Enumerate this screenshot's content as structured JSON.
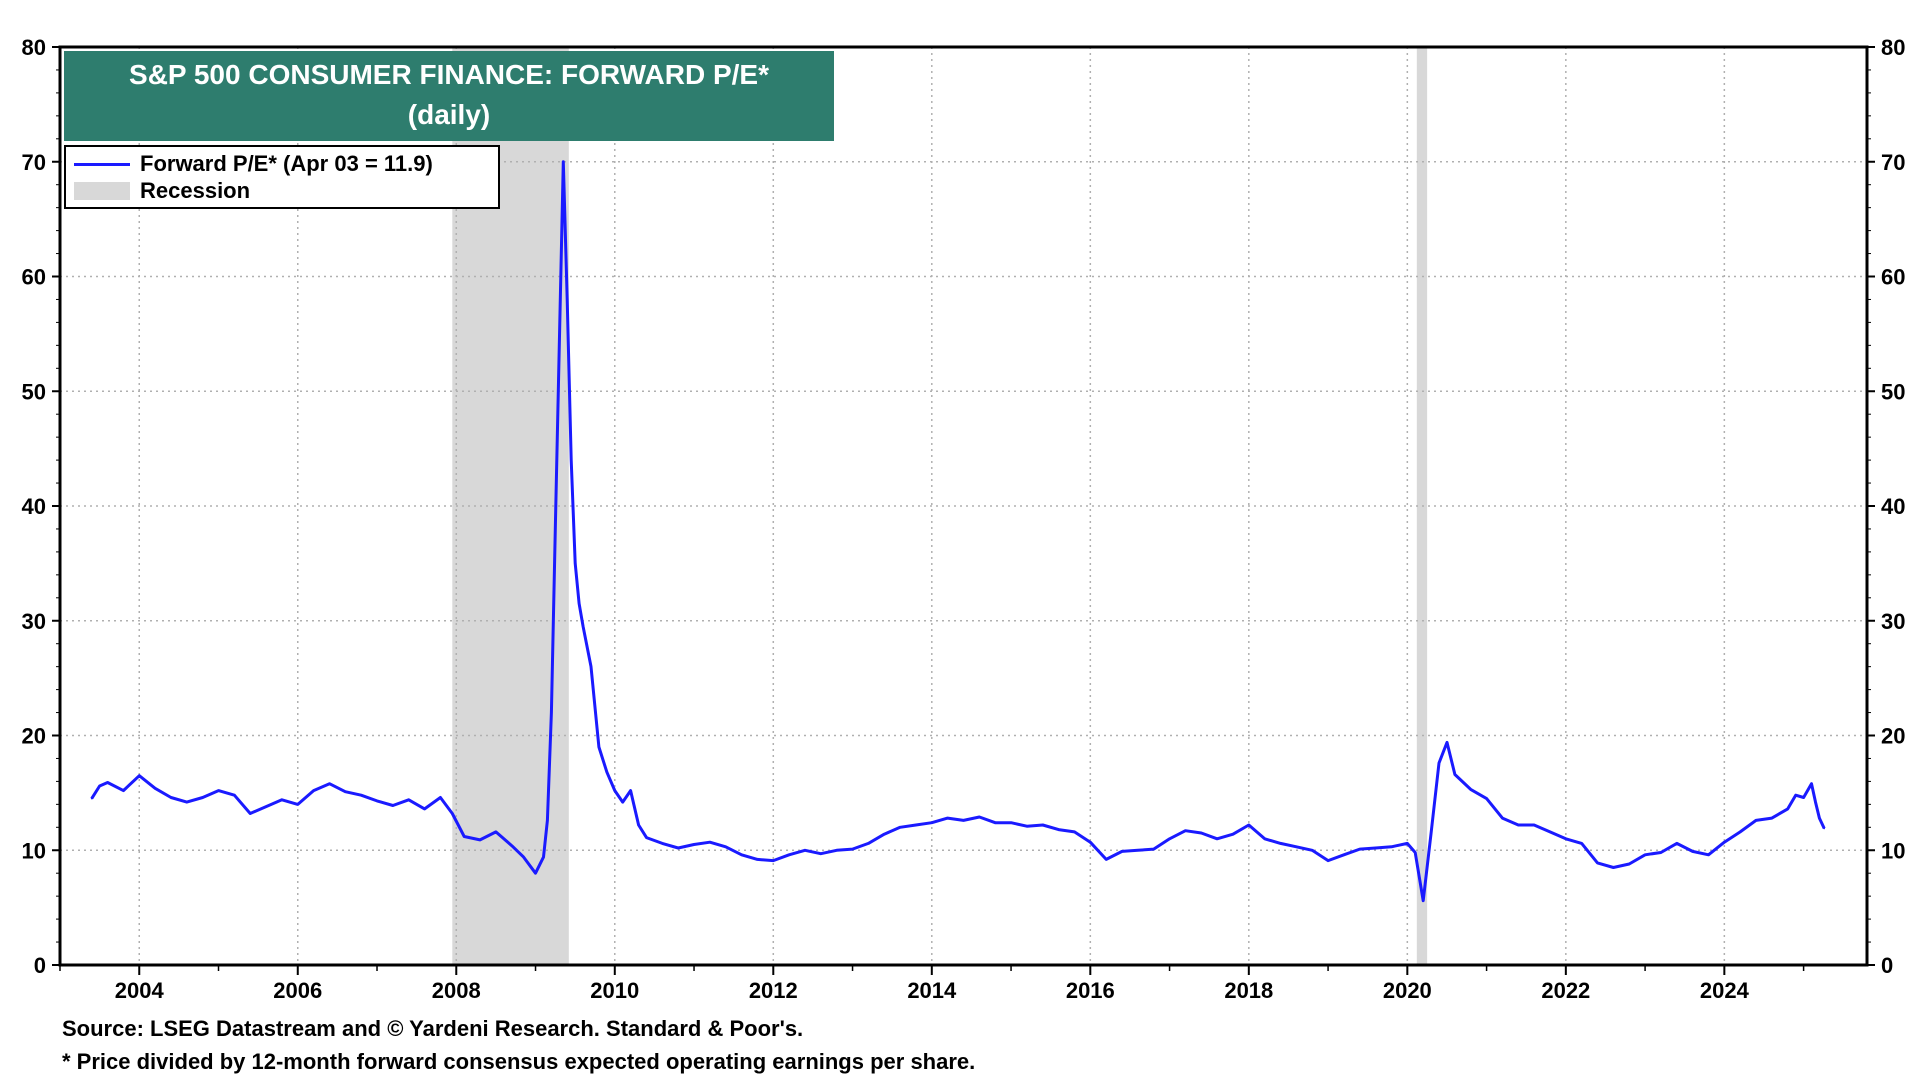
{
  "chart_data": {
    "type": "line",
    "title": "S&P 500 CONSUMER FINANCE: FORWARD P/E*",
    "subtitle": "(daily)",
    "xlabel": "",
    "ylabel": "",
    "xlim": [
      2003.0,
      2025.8
    ],
    "ylim": [
      0,
      80
    ],
    "y_ticks": [
      0,
      10,
      20,
      30,
      40,
      50,
      60,
      70,
      80
    ],
    "x_ticks": [
      2004,
      2006,
      2008,
      2010,
      2012,
      2014,
      2016,
      2018,
      2020,
      2022,
      2024
    ],
    "x_tick_labels": [
      "2004",
      "2006",
      "2008",
      "2010",
      "2012",
      "2014",
      "2016",
      "2018",
      "2020",
      "2022",
      "2024"
    ],
    "grid": true,
    "dual_y_axis": true,
    "legend_position": "top-left",
    "series": [
      {
        "name": "Forward P/E* (Apr 03 = 11.9)",
        "color": "#1a1aff",
        "x": [
          2003.4,
          2003.5,
          2003.6,
          2003.8,
          2004.0,
          2004.2,
          2004.4,
          2004.6,
          2004.8,
          2005.0,
          2005.2,
          2005.4,
          2005.6,
          2005.8,
          2006.0,
          2006.2,
          2006.4,
          2006.6,
          2006.8,
          2007.0,
          2007.2,
          2007.4,
          2007.6,
          2007.8,
          2007.95,
          2008.1,
          2008.3,
          2008.5,
          2008.7,
          2008.85,
          2009.0,
          2009.1,
          2009.15,
          2009.2,
          2009.25,
          2009.3,
          2009.35,
          2009.4,
          2009.45,
          2009.5,
          2009.55,
          2009.6,
          2009.7,
          2009.8,
          2009.9,
          2010.0,
          2010.1,
          2010.2,
          2010.3,
          2010.4,
          2010.6,
          2010.8,
          2011.0,
          2011.2,
          2011.4,
          2011.6,
          2011.8,
          2012.0,
          2012.2,
          2012.4,
          2012.6,
          2012.8,
          2013.0,
          2013.2,
          2013.4,
          2013.6,
          2013.8,
          2014.0,
          2014.2,
          2014.4,
          2014.6,
          2014.8,
          2015.0,
          2015.2,
          2015.4,
          2015.6,
          2015.8,
          2016.0,
          2016.2,
          2016.4,
          2016.6,
          2016.8,
          2017.0,
          2017.2,
          2017.4,
          2017.6,
          2017.8,
          2018.0,
          2018.2,
          2018.4,
          2018.6,
          2018.8,
          2019.0,
          2019.2,
          2019.4,
          2019.6,
          2019.8,
          2020.0,
          2020.1,
          2020.2,
          2020.3,
          2020.4,
          2020.5,
          2020.6,
          2020.8,
          2021.0,
          2021.2,
          2021.4,
          2021.6,
          2021.8,
          2022.0,
          2022.2,
          2022.4,
          2022.6,
          2022.8,
          2023.0,
          2023.2,
          2023.4,
          2023.6,
          2023.8,
          2024.0,
          2024.2,
          2024.4,
          2024.6,
          2024.8,
          2024.9,
          2025.0,
          2025.1,
          2025.15,
          2025.2,
          2025.26
        ],
        "values": [
          14.5,
          15.6,
          15.9,
          15.2,
          16.5,
          15.4,
          14.6,
          14.2,
          14.6,
          15.2,
          14.8,
          13.2,
          13.8,
          14.4,
          14.0,
          15.2,
          15.8,
          15.1,
          14.8,
          14.3,
          13.9,
          14.4,
          13.6,
          14.6,
          13.2,
          11.2,
          10.9,
          11.6,
          10.4,
          9.4,
          8.0,
          9.4,
          12.6,
          22.0,
          38.0,
          54.0,
          70.0,
          58.0,
          44.0,
          35.0,
          31.5,
          29.5,
          26.0,
          19.0,
          16.8,
          15.2,
          14.2,
          15.2,
          12.2,
          11.1,
          10.6,
          10.2,
          10.5,
          10.7,
          10.3,
          9.6,
          9.2,
          9.1,
          9.6,
          10.0,
          9.7,
          10.0,
          10.1,
          10.6,
          11.4,
          12.0,
          12.2,
          12.4,
          12.8,
          12.6,
          12.9,
          12.4,
          12.4,
          12.1,
          12.2,
          11.8,
          11.6,
          10.7,
          9.2,
          9.9,
          10.0,
          10.1,
          11.0,
          11.7,
          11.5,
          11.0,
          11.4,
          12.2,
          11.0,
          10.6,
          10.3,
          10.0,
          9.1,
          9.6,
          10.1,
          10.2,
          10.3,
          10.6,
          9.8,
          5.6,
          11.5,
          17.6,
          19.4,
          16.6,
          15.3,
          14.5,
          12.8,
          12.2,
          12.2,
          11.6,
          11.0,
          10.6,
          8.9,
          8.5,
          8.8,
          9.6,
          9.8,
          10.6,
          9.9,
          9.6,
          10.7,
          11.6,
          12.6,
          12.8,
          13.6,
          14.8,
          14.6,
          15.8,
          14.2,
          12.8,
          11.9
        ]
      }
    ],
    "recessions": [
      {
        "start": 2007.95,
        "end": 2009.42
      },
      {
        "start": 2020.12,
        "end": 2020.25
      }
    ],
    "legend": {
      "line_label": "Forward P/E* (Apr 03 = 11.9)",
      "recession_label": "Recession"
    },
    "colors": {
      "title_bg": "#2e7d6e",
      "line": "#1a1aff",
      "recession": "#d8d8d8",
      "grid": "#b0b0b0"
    }
  },
  "footnotes": {
    "source": "Source: LSEG Datastream and © Yardeni Research. Standard & Poor's.",
    "note": "* Price divided by 12-month forward consensus expected operating earnings per share."
  }
}
